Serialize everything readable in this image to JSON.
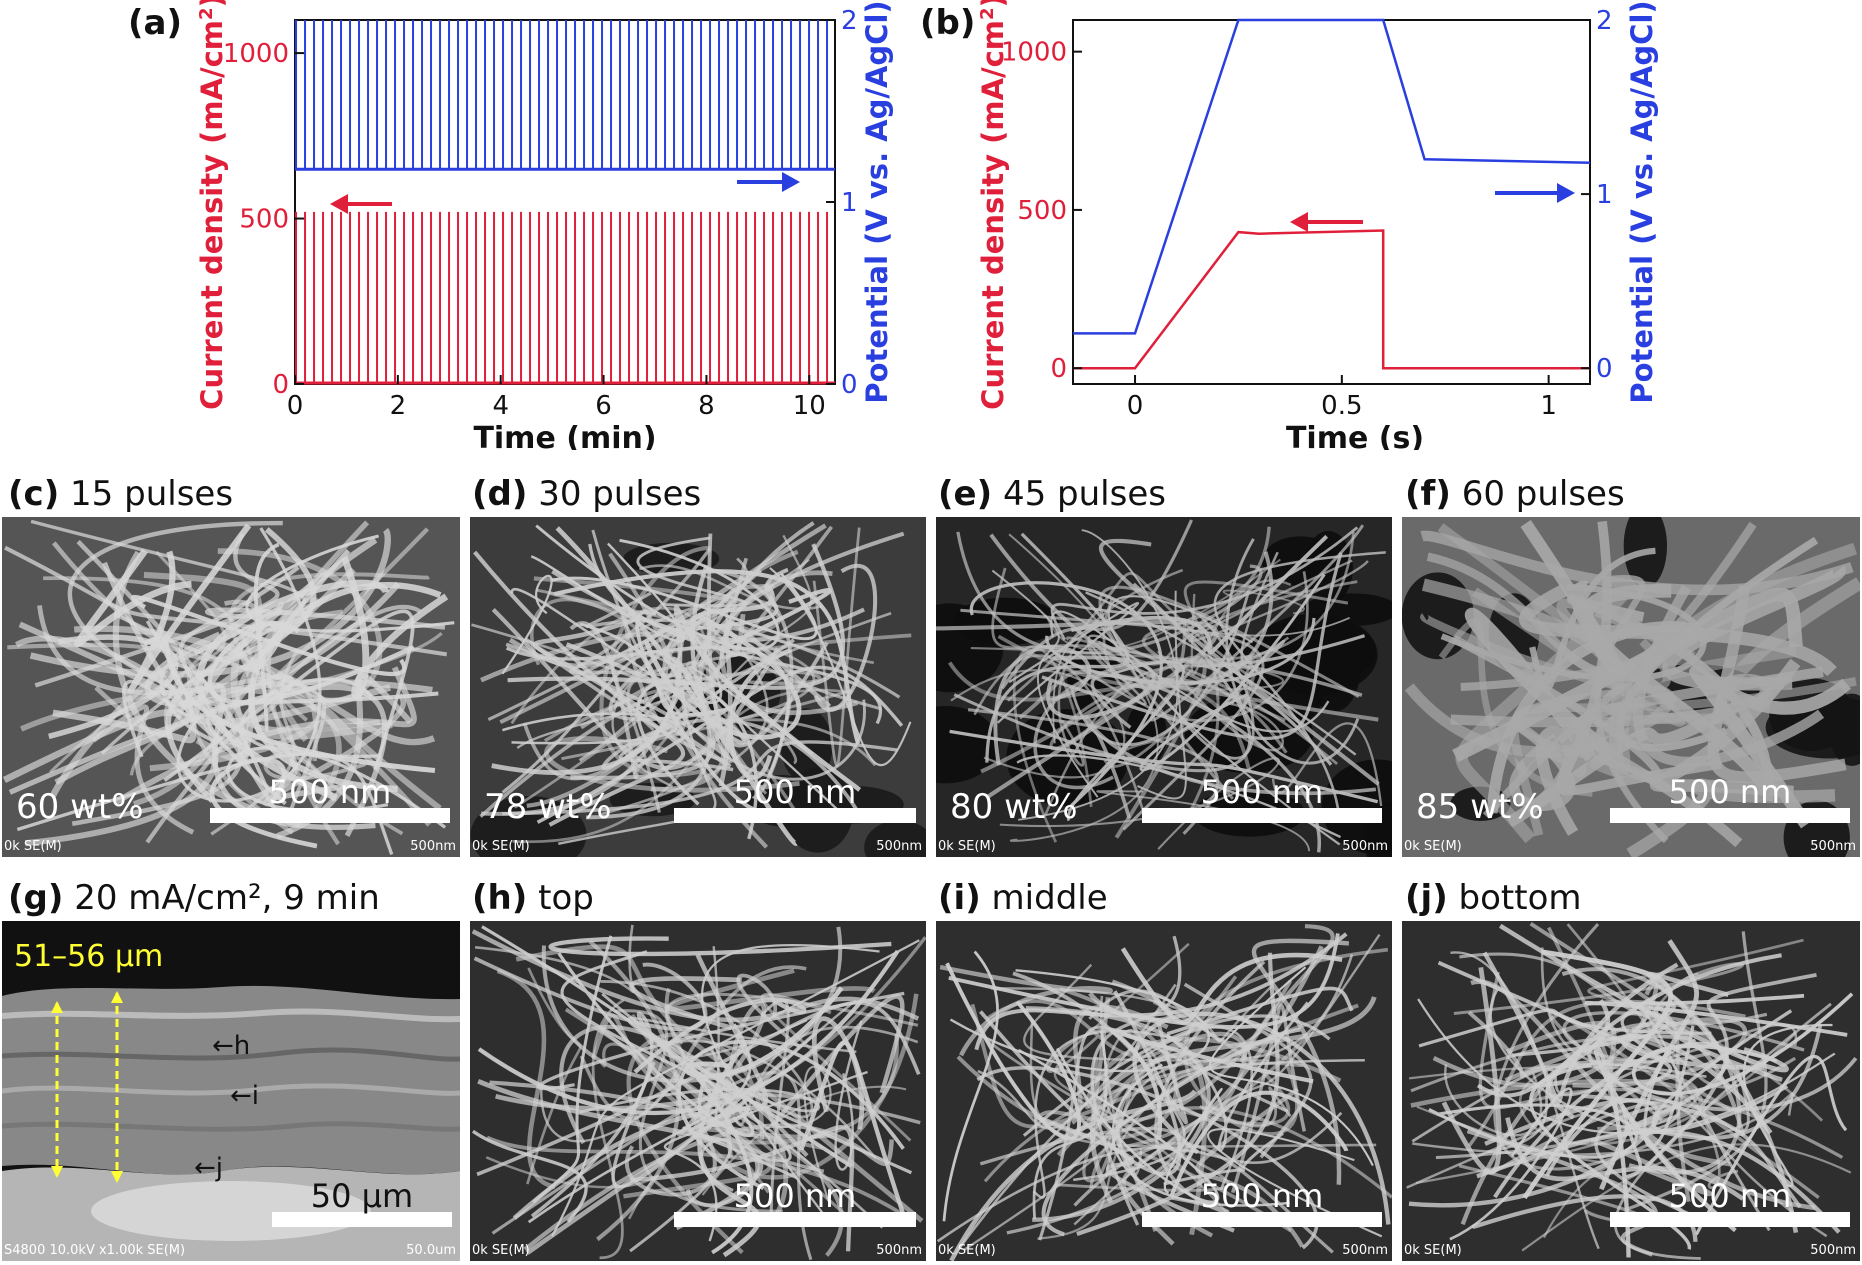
{
  "chart_data": [
    {
      "panel": "(a)",
      "type": "line",
      "xlabel": "Time (min)",
      "ylabel_left": "Current density (mA/cm2)",
      "ylabel_right": "Potential (V vs. Ag/AgCl)",
      "xlim": [
        0,
        10.5
      ],
      "ylim_left": [
        0,
        1100
      ],
      "ylim_right": [
        0,
        2
      ],
      "xticks": [
        0,
        2,
        4,
        6,
        8,
        10
      ],
      "yticks_left": [
        0,
        500,
        1000
      ],
      "yticks_right": [
        0,
        1,
        2
      ],
      "pulse_count": 60,
      "pulse_period_min": 0.175,
      "series": [
        {
          "axis": "left",
          "color": "#e0203a",
          "baseline": 0,
          "peak": 520
        },
        {
          "axis": "right",
          "color": "#2a3fe0",
          "baseline": 1.18,
          "peak": 2.0
        }
      ],
      "arrows": [
        {
          "direction": "left",
          "color": "#e0203a",
          "points_to": "left axis"
        },
        {
          "direction": "right",
          "color": "#2a3fe0",
          "points_to": "right axis"
        }
      ]
    },
    {
      "panel": "(b)",
      "type": "line",
      "xlabel": "Time (s)",
      "ylabel_left": "Current density (mA/cm2)",
      "ylabel_right": "Potential (V vs. Ag/AgCl)",
      "xlim": [
        -0.15,
        1.1
      ],
      "ylim_left": [
        -50,
        1100
      ],
      "ylim_right": [
        -0.0909,
        2
      ],
      "xticks": [
        0,
        0.5,
        1
      ],
      "xtick_labels": [
        "0",
        "0.5",
        "1"
      ],
      "yticks_left": [
        0,
        500,
        1000
      ],
      "yticks_right": [
        0,
        1,
        2
      ],
      "series": [
        {
          "axis": "left",
          "color": "#e0203a",
          "x": [
            -0.15,
            0,
            0.25,
            0.3,
            0.6,
            0.6,
            1.1
          ],
          "y": [
            0,
            0,
            430,
            425,
            435,
            0,
            0
          ]
        },
        {
          "axis": "right",
          "color": "#2a3fe0",
          "x": [
            -0.15,
            0,
            0.25,
            0.6,
            0.7,
            1.1
          ],
          "y": [
            0.2,
            0.2,
            2.0,
            2.0,
            1.2,
            1.18
          ]
        }
      ],
      "arrows": [
        {
          "direction": "left",
          "color": "#e0203a",
          "points_to": "left axis"
        },
        {
          "direction": "right",
          "color": "#2a3fe0",
          "points_to": "right axis"
        }
      ]
    }
  ],
  "micrographs": [
    {
      "tag": "(c)",
      "caption": "15 pulses",
      "wt": "60 wt%",
      "scale": "500 nm",
      "footer_left": "0k SE(M)",
      "footer_right": "500nm"
    },
    {
      "tag": "(d)",
      "caption": "30 pulses",
      "wt": "78 wt%",
      "scale": "500 nm",
      "footer_left": "0k SE(M)",
      "footer_right": "500nm"
    },
    {
      "tag": "(e)",
      "caption": "45 pulses",
      "wt": "80 wt%",
      "scale": "500 nm",
      "footer_left": "0k SE(M)",
      "footer_right": "500nm"
    },
    {
      "tag": "(f)",
      "caption": "60 pulses",
      "wt": "85 wt%",
      "scale": "500 nm",
      "footer_left": "0k SE(M)",
      "footer_right": "500nm"
    },
    {
      "tag": "(g)",
      "caption": "20 mA/cm², 9 min",
      "measure": "51–56 µm",
      "markers": [
        "h",
        "i",
        "j"
      ],
      "scale": "50 µm",
      "footer_left": "S4800 10.0kV x1.00k SE(M)",
      "footer_right": "50.0um"
    },
    {
      "tag": "(h)",
      "caption": "top",
      "scale": "500 nm",
      "footer_left": "0k SE(M)",
      "footer_right": "500nm"
    },
    {
      "tag": "(i)",
      "caption": "middle",
      "scale": "500 nm",
      "footer_left": "0k SE(M)",
      "footer_right": "500nm"
    },
    {
      "tag": "(j)",
      "caption": "bottom",
      "scale": "500 nm",
      "footer_left": "0k SE(M)",
      "footer_right": "500nm"
    }
  ],
  "colors": {
    "current": "#e0203a",
    "potential": "#2a3fe0",
    "measure": "#ffff33"
  }
}
